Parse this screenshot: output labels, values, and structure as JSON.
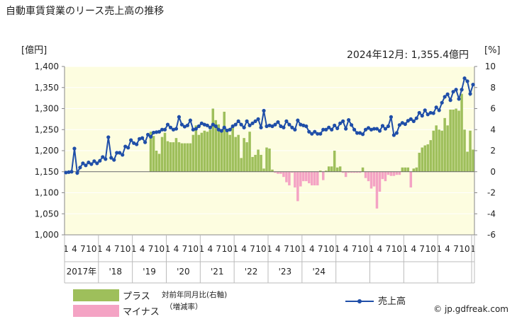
{
  "colors": {
    "plot_bg": "#fdfde0",
    "plus_bar": "#9ebf5b",
    "minus_bar": "#f4a3c4",
    "line": "#1f4ea8",
    "axis": "#888888",
    "grid": "#ffffff"
  },
  "chart_data": {
    "type": "bar+line",
    "title": "自動車賃貸業のリース売上高の推移",
    "left_unit": "[億円]",
    "right_unit": "[%]",
    "annotation": "2024年12月: 1,355.4億円",
    "left_axis": {
      "min": 1000,
      "max": 1400,
      "ticks": [
        1000,
        1050,
        1100,
        1150,
        1200,
        1250,
        1300,
        1350,
        1400
      ],
      "tick_labels": [
        "1,000",
        "1,050",
        "1,100",
        "1,150",
        "1,200",
        "1,250",
        "1,300",
        "1,350",
        "1,400"
      ]
    },
    "right_axis": {
      "min": -6,
      "max": 10,
      "ticks": [
        -6,
        -4,
        -2,
        0,
        2,
        4,
        6,
        8,
        10
      ],
      "tick_labels": [
        "-6",
        "-4",
        "-2",
        "0",
        "2",
        "4",
        "6",
        "8",
        "10"
      ]
    },
    "month_tick_labels": [
      "1",
      "4",
      "7",
      "10"
    ],
    "year_labels": [
      "2017年",
      "'18",
      "'19",
      "'20",
      "'21",
      "'22",
      "'23",
      "'24"
    ],
    "legend": {
      "plus": "プラス",
      "minus": "マイナス",
      "yoy_line1": "対前年同月比(右軸)",
      "yoy_line2": "（増減率）",
      "sales": "売上高"
    },
    "source": "© jp.gdfreak.com",
    "series": [
      {
        "name": "売上高",
        "unit": "億円",
        "values": [
          1148,
          1149,
          1150,
          1205,
          1147,
          1160,
          1170,
          1165,
          1172,
          1168,
          1175,
          1170,
          1176,
          1185,
          1180,
          1232,
          1183,
          1178,
          1195,
          1195,
          1190,
          1210,
          1207,
          1225,
          1218,
          1215,
          1228,
          1230,
          1220,
          1238,
          1233,
          1243,
          1244,
          1245,
          1250,
          1250,
          1262,
          1255,
          1250,
          1252,
          1280,
          1262,
          1257,
          1260,
          1272,
          1250,
          1252,
          1258,
          1265,
          1262,
          1260,
          1255,
          1262,
          1258,
          1250,
          1247,
          1255,
          1248,
          1250,
          1258,
          1262,
          1270,
          1262,
          1255,
          1270,
          1260,
          1265,
          1270,
          1275,
          1255,
          1295,
          1258,
          1260,
          1258,
          1262,
          1268,
          1258,
          1255,
          1270,
          1262,
          1255,
          1250,
          1272,
          1262,
          1260,
          1258,
          1245,
          1240,
          1245,
          1240,
          1240,
          1250,
          1250,
          1255,
          1250,
          1260,
          1253,
          1265,
          1270,
          1252,
          1273,
          1261,
          1250,
          1242,
          1242,
          1239,
          1250,
          1254,
          1250,
          1252,
          1252,
          1247,
          1259,
          1252,
          1258,
          1280,
          1237,
          1242,
          1261,
          1266,
          1263,
          1271,
          1275,
          1270,
          1277,
          1290,
          1283,
          1296,
          1286,
          1290,
          1289,
          1303,
          1296,
          1314,
          1328,
          1334,
          1320,
          1340,
          1345,
          1323,
          1345,
          1372,
          1365,
          1335,
          1357
        ]
      },
      {
        "name": "対前年同月比",
        "unit": "%",
        "values": [
          3.8,
          3.4,
          2.0,
          1.7,
          3.3,
          3.7,
          2.9,
          2.8,
          2.8,
          3.2,
          2.8,
          2.7,
          2.7,
          2.7,
          2.7,
          3.5,
          4.4,
          3.5,
          3.7,
          3.9,
          3.8,
          4.0,
          6.0,
          4.9,
          4.5,
          3.8,
          5.7,
          3.9,
          3.5,
          4.4,
          3.3,
          3.5,
          1.3,
          3.2,
          2.8,
          3.8,
          1.4,
          1.6,
          2.1,
          1.6,
          0.3,
          2.3,
          2.2,
          0.2,
          -0.1,
          -0.2,
          -0.2,
          -0.5,
          -1.0,
          -1.3,
          -0.1,
          -1.5,
          -2.8,
          -1.4,
          -0.9,
          -0.9,
          -1.1,
          -1.3,
          -1.3,
          -1.3,
          0.1,
          -0.8,
          0.1,
          0.5,
          0.5,
          2.0,
          0.4,
          0.5,
          -0.1,
          -0.5,
          -0.1,
          -0.1,
          -0.1,
          -0.1,
          -0.1,
          0.4,
          -0.6,
          -0.9,
          -1.6,
          -1.4,
          -3.5,
          -1.9,
          -0.7,
          -0.9,
          -0.3,
          -0.4,
          -0.4,
          -0.3,
          -0.3,
          0.4,
          0.4,
          0.4,
          -1.5,
          0.3,
          0.4,
          1.8,
          2.3,
          2.5,
          2.6,
          3.0,
          3.9,
          4.4,
          4.0,
          3.9,
          5.1,
          4.4,
          5.9,
          5.9,
          6.0,
          5.8,
          7.4,
          4.0,
          1.9,
          3.9,
          2.1
        ]
      }
    ],
    "annotation_marker": "end"
  }
}
